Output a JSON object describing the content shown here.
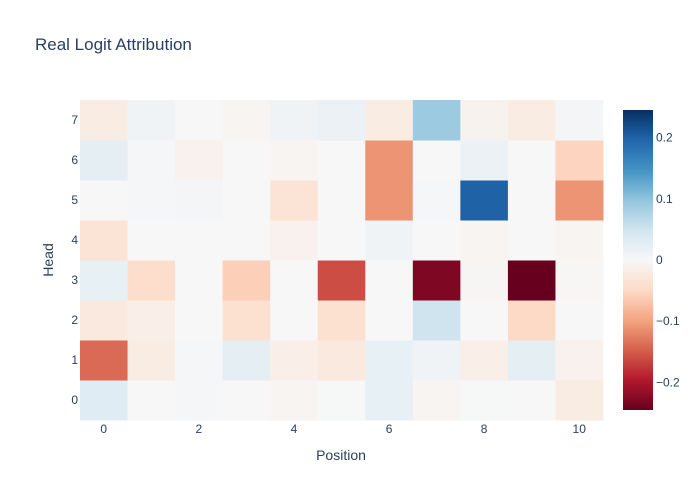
{
  "chart_data": {
    "type": "heatmap",
    "title": "Real Logit Attribution",
    "xlabel": "Position",
    "ylabel": "Head",
    "x": [
      0,
      1,
      2,
      3,
      4,
      5,
      6,
      7,
      8,
      9,
      10
    ],
    "y": [
      0,
      1,
      2,
      3,
      4,
      5,
      6,
      7
    ],
    "x_ticks": [
      "0",
      "2",
      "4",
      "6",
      "8",
      "10"
    ],
    "x_tick_values": [
      0,
      2,
      4,
      6,
      8,
      10
    ],
    "y_ticks": [
      "0",
      "1",
      "2",
      "3",
      "4",
      "5",
      "6",
      "7"
    ],
    "y_tick_values": [
      0,
      1,
      2,
      3,
      4,
      5,
      6,
      7
    ],
    "z": [
      [
        0.03,
        0.0,
        0.002,
        0.0,
        -0.005,
        0.001,
        0.02,
        -0.005,
        0.001,
        0.0,
        -0.02
      ],
      [
        -0.14,
        -0.02,
        0.002,
        0.025,
        -0.015,
        -0.025,
        0.02,
        0.01,
        -0.015,
        0.025,
        -0.01
      ],
      [
        -0.025,
        -0.015,
        0.0,
        -0.04,
        0.0,
        -0.04,
        0.0,
        0.05,
        0.0,
        -0.05,
        0.0
      ],
      [
        0.02,
        -0.045,
        0.0,
        -0.06,
        0.0,
        -0.16,
        0.0,
        -0.23,
        -0.003,
        -0.245,
        -0.002
      ],
      [
        -0.035,
        0.0,
        0.0,
        0.0,
        -0.01,
        0.0,
        0.01,
        0.0,
        -0.005,
        0.0,
        -0.005
      ],
      [
        0.0,
        0.002,
        0.005,
        0.0,
        -0.035,
        0.0,
        -0.11,
        0.003,
        0.2,
        0.0,
        -0.11
      ],
      [
        0.025,
        0.002,
        -0.01,
        0.0,
        -0.005,
        0.0,
        -0.11,
        0.0,
        0.015,
        0.0,
        -0.055
      ],
      [
        -0.02,
        0.01,
        0.0,
        -0.005,
        0.01,
        0.015,
        -0.02,
        0.09,
        -0.008,
        -0.02,
        0.005
      ]
    ],
    "zmin": -0.245,
    "zmax": 0.245,
    "colorscale": "RdBu",
    "colorbar": {
      "ticks": [
        "0.2",
        "0.1",
        "0",
        "−0.1",
        "−0.2"
      ],
      "tick_values": [
        0.2,
        0.1,
        0,
        -0.1,
        -0.2
      ]
    },
    "colors": {
      "background": "#ffffff",
      "text": "#2a3f5f",
      "stops": [
        "#67001f",
        "#b2182b",
        "#d6604d",
        "#f4a582",
        "#fddbc7",
        "#f7f7f7",
        "#d1e5f0",
        "#92c5de",
        "#4393c3",
        "#2166ac",
        "#053061"
      ]
    }
  }
}
